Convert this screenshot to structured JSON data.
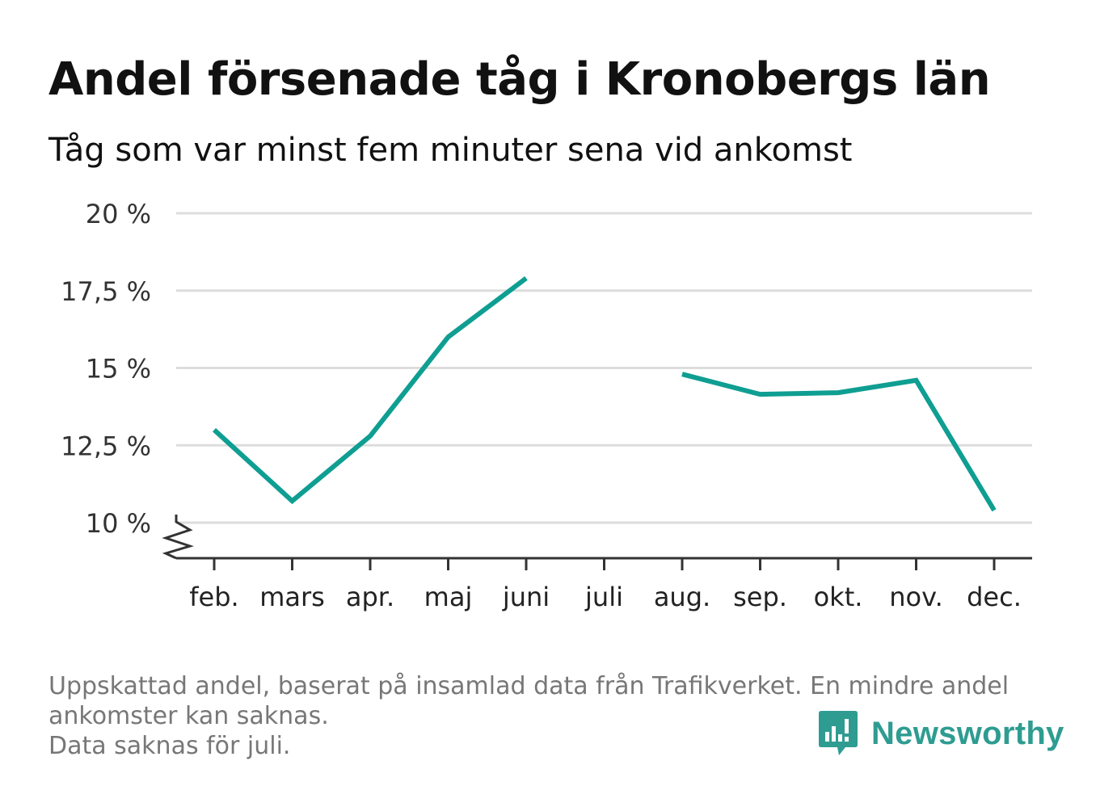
{
  "title": "Andel försenade tåg i Kronobergs län",
  "subtitle": "Tåg som var minst fem minuter sena vid ankomst",
  "footnote": {
    "line1": "Uppskattad andel, baserat på insamlad data från Trafikverket. En mindre andel",
    "line2": "ankomster kan saknas.",
    "line3": "Data saknas för juli."
  },
  "brand": {
    "name": "Newsworthy",
    "color": "#2e9c91",
    "icon": "newsworthy-logo-icon"
  },
  "chart_data": {
    "type": "line",
    "categories": [
      "feb.",
      "mars",
      "apr.",
      "maj",
      "juni",
      "juli",
      "aug.",
      "sep.",
      "okt.",
      "nov.",
      "dec."
    ],
    "series": [
      {
        "values": [
          13.0,
          10.7,
          12.8,
          16.0,
          17.9,
          null,
          14.8,
          14.15,
          14.2,
          14.6,
          10.4
        ]
      }
    ],
    "yticks": [
      {
        "value": 10,
        "label": "10 %"
      },
      {
        "value": 12.5,
        "label": "12,5 %"
      },
      {
        "value": 15,
        "label": "15 %"
      },
      {
        "value": 17.5,
        "label": "17,5 %"
      },
      {
        "value": 20,
        "label": "20 %"
      }
    ],
    "ylim": [
      10,
      20
    ],
    "y_axis_break": true,
    "grid": true,
    "xlabel": "",
    "ylabel": "",
    "line_color": "#0f9e92",
    "grid_color": "#dddddd",
    "axis_color": "#333333"
  }
}
